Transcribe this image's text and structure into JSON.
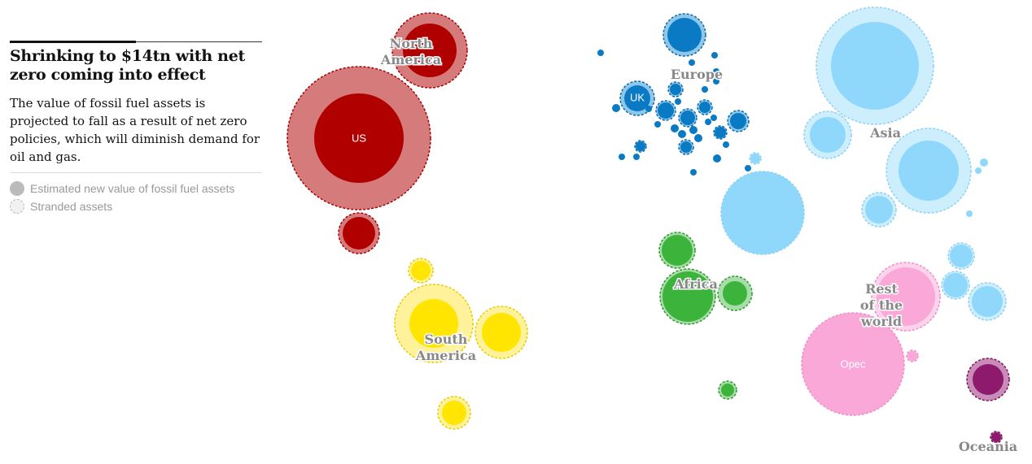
{
  "header": {
    "title": "Shrinking to $14tn with net zero coming into effect",
    "description": "The value of fossil fuel assets is projected to fall as a result of net zero policies, which will diminish demand for oil and gas."
  },
  "legend": [
    "Estimated new value of fossil fuel assets",
    "Stranded assets"
  ],
  "regions": [
    {
      "lines": [
        "North",
        "America"
      ]
    },
    {
      "lines": [
        "South",
        "America"
      ]
    },
    {
      "lines": [
        "Africa"
      ]
    },
    {
      "lines": [
        "Europe"
      ]
    },
    {
      "lines": [
        "Asia"
      ]
    },
    {
      "lines": [
        "Rest",
        "of the",
        "world"
      ]
    },
    {
      "lines": [
        "Oceania"
      ]
    }
  ],
  "bubble_labels": [
    "US",
    "UK",
    "Opec"
  ]
}
